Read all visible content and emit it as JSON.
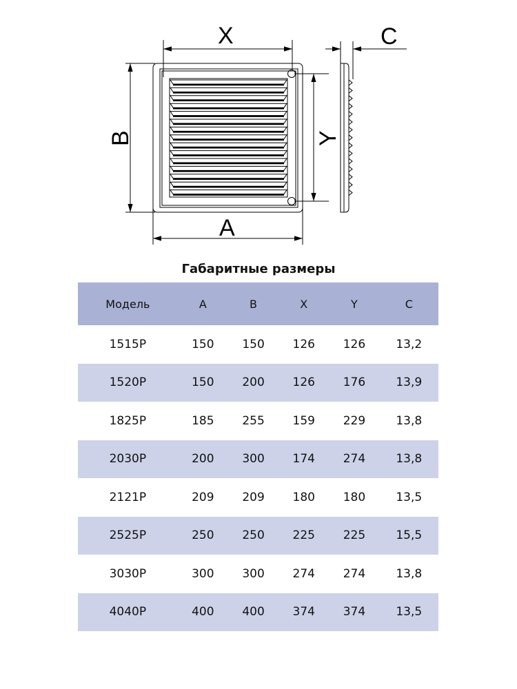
{
  "drawing": {
    "labels": {
      "x": "X",
      "y": "Y",
      "a": "A",
      "b": "B",
      "c": "C"
    }
  },
  "title": "Габаритные размеры",
  "table": {
    "headers": [
      "Модель",
      "A",
      "B",
      "X",
      "Y",
      "C"
    ],
    "rows": [
      [
        "1515P",
        "150",
        "150",
        "126",
        "126",
        "13,2"
      ],
      [
        "1520P",
        "150",
        "200",
        "126",
        "176",
        "13,9"
      ],
      [
        "1825P",
        "185",
        "255",
        "159",
        "229",
        "13,8"
      ],
      [
        "2030P",
        "200",
        "300",
        "174",
        "274",
        "13,8"
      ],
      [
        "2121P",
        "209",
        "209",
        "180",
        "180",
        "13,5"
      ],
      [
        "2525P",
        "250",
        "250",
        "225",
        "225",
        "15,5"
      ],
      [
        "3030P",
        "300",
        "300",
        "274",
        "274",
        "13,8"
      ],
      [
        "4040P",
        "400",
        "400",
        "374",
        "374",
        "13,5"
      ]
    ]
  },
  "colors": {
    "header": "#a9b1d5",
    "alt_row": "#cdd2e9"
  }
}
